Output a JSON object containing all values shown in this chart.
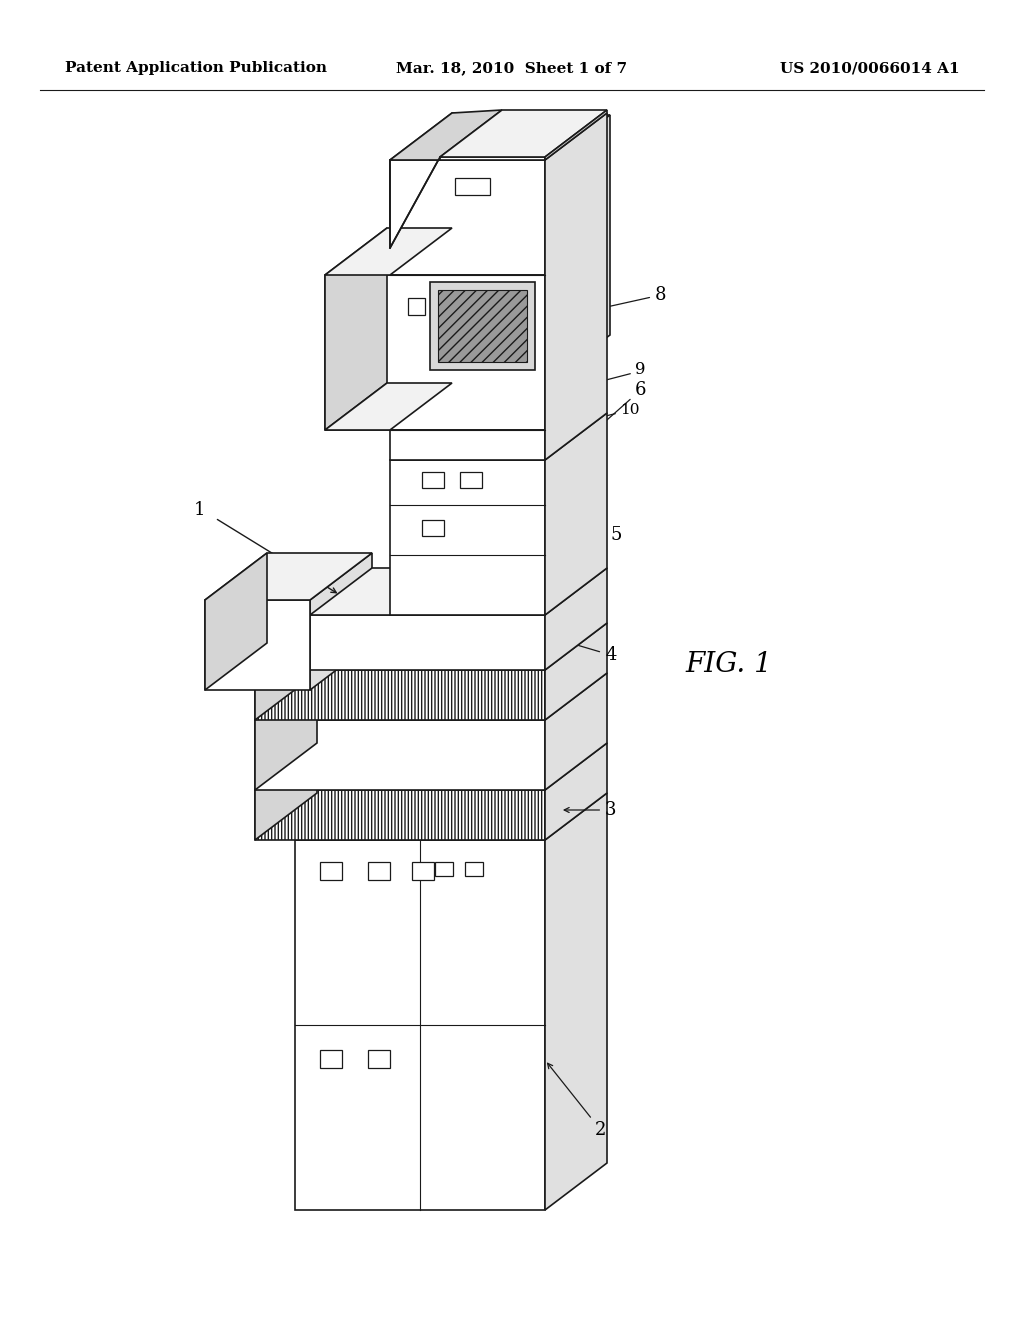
{
  "bg_color": "#ffffff",
  "header_left": "Patent Application Publication",
  "header_mid": "Mar. 18, 2010  Sheet 1 of 7",
  "header_right": "US 2010/0066014 A1",
  "fig_label": "FIG. 1",
  "edge_color": "#1a1a1a",
  "lw_main": 1.2,
  "lw_thin": 0.8,
  "header_fontsize": 11,
  "label_fontsize": 13
}
